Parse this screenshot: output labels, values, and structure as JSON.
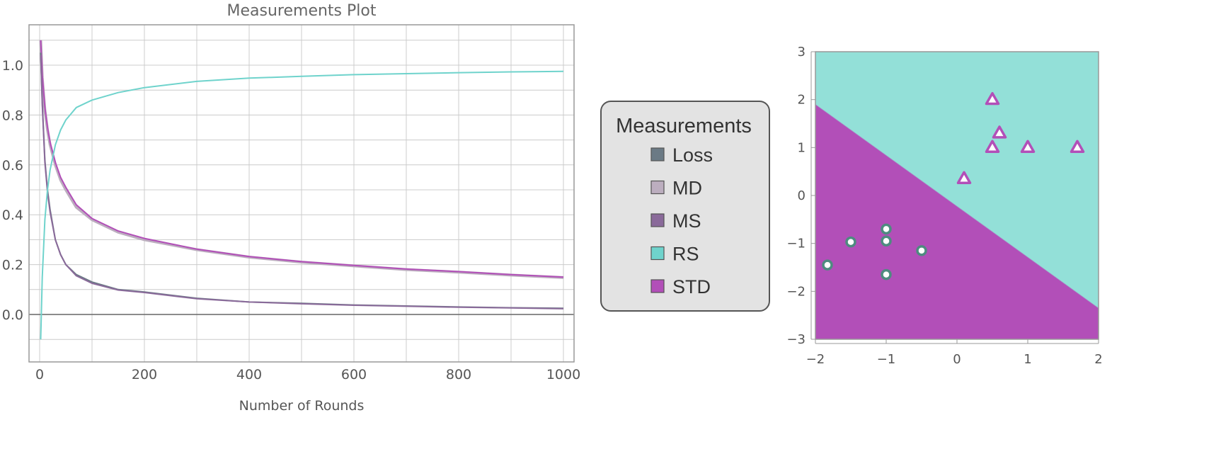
{
  "chart_data": [
    {
      "type": "line",
      "title": "Measurements Plot",
      "xlabel": "Number of Rounds",
      "ylabel": "",
      "xlim": [
        0,
        1000
      ],
      "ylim": [
        -0.1,
        1.1
      ],
      "x_ticks": [
        0,
        200,
        400,
        600,
        800,
        1000
      ],
      "x_tick_labels": [
        "0",
        "200",
        "400",
        "600",
        "800",
        "1000"
      ],
      "y_ticks": [
        0.0,
        0.2,
        0.4,
        0.6,
        0.8,
        1.0
      ],
      "y_tick_labels": [
        "0.0",
        "0.2",
        "0.4",
        "0.6",
        "0.8",
        "1.0"
      ],
      "grid": true,
      "x": [
        2,
        5,
        10,
        15,
        20,
        30,
        40,
        50,
        70,
        100,
        150,
        200,
        300,
        400,
        500,
        600,
        700,
        800,
        900,
        1000
      ],
      "series": [
        {
          "name": "Loss",
          "color": "#6b7a85",
          "values": [
            1.05,
            0.85,
            0.62,
            0.5,
            0.42,
            0.3,
            0.24,
            0.2,
            0.16,
            0.13,
            0.1,
            0.09,
            0.065,
            0.05,
            0.045,
            0.038,
            0.034,
            0.03,
            0.027,
            0.025
          ]
        },
        {
          "name": "MD",
          "color": "#bcaebf",
          "values": [
            1.1,
            0.95,
            0.82,
            0.74,
            0.68,
            0.6,
            0.54,
            0.5,
            0.43,
            0.38,
            0.33,
            0.3,
            0.26,
            0.23,
            0.21,
            0.195,
            0.18,
            0.17,
            0.158,
            0.148
          ]
        },
        {
          "name": "MS",
          "color": "#8a6a9a",
          "values": [
            1.04,
            0.84,
            0.61,
            0.49,
            0.41,
            0.3,
            0.24,
            0.2,
            0.155,
            0.125,
            0.098,
            0.088,
            0.063,
            0.05,
            0.043,
            0.037,
            0.033,
            0.029,
            0.026,
            0.023
          ]
        },
        {
          "name": "RS",
          "color": "#6fd3cc",
          "values": [
            -0.1,
            0.15,
            0.38,
            0.5,
            0.58,
            0.68,
            0.74,
            0.78,
            0.83,
            0.86,
            0.89,
            0.91,
            0.935,
            0.948,
            0.955,
            0.962,
            0.966,
            0.97,
            0.973,
            0.975
          ]
        },
        {
          "name": "STD",
          "color": "#b24fb8",
          "values": [
            1.1,
            0.96,
            0.83,
            0.75,
            0.69,
            0.61,
            0.55,
            0.51,
            0.44,
            0.385,
            0.335,
            0.305,
            0.262,
            0.232,
            0.212,
            0.197,
            0.182,
            0.172,
            0.16,
            0.15
          ]
        }
      ],
      "legend": {
        "title": "Measurements",
        "placement": "right",
        "entries": [
          {
            "label": "Loss",
            "color": "#6b7a85"
          },
          {
            "label": "MD",
            "color": "#bcaebf"
          },
          {
            "label": "MS",
            "color": "#8a6a9a"
          },
          {
            "label": "RS",
            "color": "#6fd3cc"
          },
          {
            "label": "STD",
            "color": "#b24fb8"
          }
        ]
      }
    },
    {
      "type": "scatter",
      "title": "",
      "xlabel": "",
      "ylabel": "",
      "xlim": [
        -2,
        2
      ],
      "ylim": [
        -3,
        3
      ],
      "x_ticks": [
        -2,
        -1,
        0,
        1,
        2
      ],
      "x_tick_labels": [
        "−2",
        "−1",
        "0",
        "1",
        "2"
      ],
      "y_ticks": [
        -3,
        -2,
        -1,
        0,
        1,
        2,
        3
      ],
      "y_tick_labels": [
        "−3",
        "−2",
        "−1",
        "0",
        "1",
        "2",
        "3"
      ],
      "grid": false,
      "decision_boundary": {
        "points": [
          [
            -2,
            1.9
          ],
          [
            2,
            -2.35
          ]
        ],
        "upper_color": "#93e0d8",
        "lower_color": "#b24fb8"
      },
      "series": [
        {
          "marker": "triangle",
          "color": "#b24fb8",
          "x": [
            0.5,
            0.6,
            0.5,
            1.0,
            1.7,
            0.1
          ],
          "y": [
            2.0,
            1.3,
            1.0,
            1.0,
            1.0,
            0.35
          ]
        },
        {
          "marker": "circle",
          "color": "#4e8b80",
          "x": [
            -1.0,
            -1.0,
            -1.5,
            -0.5,
            -1.83,
            -1.0
          ],
          "y": [
            -0.7,
            -0.95,
            -0.97,
            -1.15,
            -1.45,
            -1.65
          ]
        }
      ]
    }
  ]
}
